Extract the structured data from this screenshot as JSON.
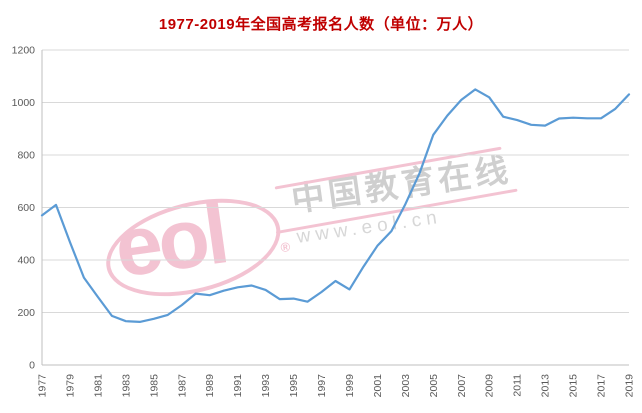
{
  "title": "1977-2019年全国高考报名人数（单位：万人）",
  "watermark": {
    "logo": "eol",
    "reg": "®",
    "name": "中国教育在线",
    "url": "www.eol.cn"
  },
  "colors": {
    "title_red": "#c00000",
    "line_blue": "#5b9bd5",
    "grid_gray": "#d9d9d9",
    "axis_gray": "#bfbfbf",
    "tick_text": "#595959",
    "watermark_pink": "#e889a6",
    "watermark_gray": "#a0a0a0"
  },
  "chart_data": {
    "type": "line",
    "title": "1977-2019年全国高考报名人数（单位：万人）",
    "xlabel": "",
    "ylabel": "",
    "x": [
      1977,
      1978,
      1979,
      1980,
      1981,
      1982,
      1983,
      1984,
      1985,
      1986,
      1987,
      1988,
      1989,
      1990,
      1991,
      1992,
      1993,
      1994,
      1995,
      1996,
      1997,
      1998,
      1999,
      2000,
      2001,
      2002,
      2003,
      2004,
      2005,
      2006,
      2007,
      2008,
      2009,
      2010,
      2011,
      2012,
      2013,
      2014,
      2015,
      2016,
      2017,
      2018,
      2019
    ],
    "values": [
      570,
      610,
      468,
      333,
      259,
      187,
      167,
      164,
      176,
      191,
      228,
      272,
      266,
      283,
      296,
      303,
      286,
      251,
      253,
      241,
      278,
      320,
      288,
      375,
      454,
      510,
      613,
      729,
      877,
      950,
      1010,
      1050,
      1020,
      946,
      933,
      915,
      912,
      939,
      942,
      940,
      940,
      975,
      1031
    ],
    "x_tick_labels": [
      "1977",
      "1979",
      "1981",
      "1983",
      "1985",
      "1987",
      "1989",
      "1991",
      "1993",
      "1995",
      "1997",
      "1999",
      "2001",
      "2003",
      "2005",
      "2007",
      "2009",
      "2011",
      "2013",
      "2015",
      "2017",
      "2019"
    ],
    "y_ticks": [
      0,
      200,
      400,
      600,
      800,
      1000,
      1200
    ],
    "ylim": [
      0,
      1200
    ],
    "grid": true,
    "legend": "none",
    "line_color": "#5b9bd5"
  }
}
